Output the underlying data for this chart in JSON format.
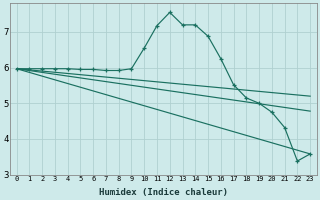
{
  "xlabel": "Humidex (Indice chaleur)",
  "bg_color": "#ceeaea",
  "grid_color": "#b0d0d0",
  "line_color": "#1a7060",
  "xlim": [
    -0.5,
    23.5
  ],
  "ylim": [
    3.0,
    7.8
  ],
  "yticks": [
    3,
    4,
    5,
    6,
    7
  ],
  "xticks": [
    0,
    1,
    2,
    3,
    4,
    5,
    6,
    7,
    8,
    9,
    10,
    11,
    12,
    13,
    14,
    15,
    16,
    17,
    18,
    19,
    20,
    21,
    22,
    23
  ],
  "curve_x": [
    0,
    1,
    2,
    3,
    4,
    5,
    6,
    7,
    8,
    9,
    10,
    11,
    12,
    13,
    14,
    15,
    16,
    17,
    18,
    19,
    20,
    21,
    22,
    23
  ],
  "curve_y": [
    5.97,
    5.97,
    5.97,
    5.97,
    5.97,
    5.95,
    5.95,
    5.92,
    5.92,
    5.97,
    6.55,
    7.18,
    7.55,
    7.2,
    7.2,
    6.88,
    6.25,
    5.52,
    5.15,
    5.0,
    4.75,
    4.32,
    3.38,
    3.58
  ],
  "line1_x": [
    0,
    23
  ],
  "line1_y": [
    5.97,
    5.2
  ],
  "line2_x": [
    0,
    23
  ],
  "line2_y": [
    5.97,
    4.78
  ],
  "line3_x": [
    0,
    23
  ],
  "line3_y": [
    5.97,
    3.58
  ]
}
